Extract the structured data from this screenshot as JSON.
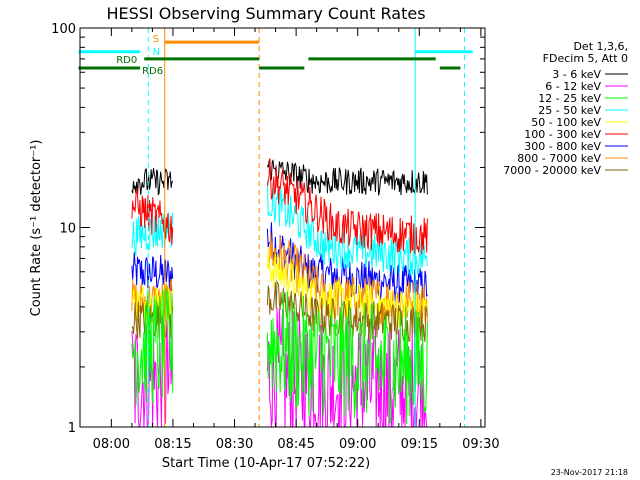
{
  "chart_data": {
    "type": "line",
    "title": "HESSI Observing Summary Count Rates",
    "xlabel": "Start Time (10-Apr-17 07:52:22)",
    "ylabel": "Count Rate (s⁻¹ detector⁻¹)",
    "yscale": "log",
    "ylim": [
      1,
      100
    ],
    "xlim": [
      "07:52:22",
      "09:31:00"
    ],
    "x_ticks": [
      "08:00",
      "08:15",
      "08:30",
      "08:45",
      "09:00",
      "09:15",
      "09:30"
    ],
    "y_ticks": [
      "1",
      "10",
      "100"
    ],
    "legend": {
      "placement": "right",
      "header": [
        "Det 1,3,6,",
        "FDecim 5, Att 0"
      ],
      "entries": [
        {
          "label": "3 - 6 keV",
          "color": "#000000"
        },
        {
          "label": "6 - 12 keV",
          "color": "#ff00ff"
        },
        {
          "label": "12 - 25 keV",
          "color": "#00ff00"
        },
        {
          "label": "25 - 50 keV",
          "color": "#00ffff"
        },
        {
          "label": "50 - 100 keV",
          "color": "#ffff00"
        },
        {
          "label": "100 - 300 keV",
          "color": "#ff0000"
        },
        {
          "label": "300 - 800 keV",
          "color": "#0000ff"
        },
        {
          "label": "800 - 7000 keV",
          "color": "#ff8c00"
        },
        {
          "label": "7000 - 20000 keV",
          "color": "#8b6508"
        }
      ]
    },
    "flags": [
      {
        "label": "S",
        "color": "#ff8c00",
        "value": 85,
        "intervals": [
          [
            "08:13",
            "08:36"
          ]
        ]
      },
      {
        "label": "N",
        "color": "#00ffff",
        "value": 76,
        "intervals": [
          [
            "07:52",
            "08:07"
          ],
          [
            "09:14",
            "09:28"
          ]
        ]
      },
      {
        "label": "RD0",
        "color": "#007000",
        "value": 70,
        "intervals": [
          [
            "08:08",
            "08:36"
          ],
          [
            "08:48",
            "09:19"
          ]
        ]
      },
      {
        "label": "RD6",
        "color": "#007000",
        "value": 63,
        "intervals": [
          [
            "07:52",
            "08:07"
          ],
          [
            "08:36",
            "08:47"
          ],
          [
            "09:20",
            "09:25"
          ]
        ]
      }
    ],
    "vlines": [
      {
        "time": "07:52:22",
        "color": "#00ffff",
        "style": "solid"
      },
      {
        "time": "08:09",
        "color": "#00ffff",
        "style": "dashed"
      },
      {
        "time": "08:13",
        "color": "#ff8c00",
        "style": "solid"
      },
      {
        "time": "08:36",
        "color": "#ff8c00",
        "style": "dashed"
      },
      {
        "time": "09:14",
        "color": "#00ffff",
        "style": "solid"
      },
      {
        "time": "09:26",
        "color": "#00ffff",
        "style": "dashed"
      }
    ],
    "data_segments": [
      [
        "08:05",
        "08:15"
      ],
      [
        "08:38",
        "09:17"
      ]
    ],
    "series": [
      {
        "name": "3 - 6 keV",
        "color": "#000000",
        "segments": [
          {
            "t": [
              "08:05",
              "08:15"
            ],
            "values": [
              17,
              17
            ]
          },
          {
            "t": [
              "08:38",
              "08:50",
              "09:17"
            ],
            "values": [
              20,
              17,
              17
            ]
          }
        ],
        "noise": 0.07
      },
      {
        "name": "6 - 12 keV",
        "color": "#ff00ff",
        "segments": [
          {
            "t": [
              "08:05",
              "08:15"
            ],
            "values": [
              1.7,
              1.7
            ]
          },
          {
            "t": [
              "08:38",
              "08:45",
              "09:17"
            ],
            "values": [
              1.9,
              1.7,
              1.5
            ]
          }
        ],
        "noise": 0.35
      },
      {
        "name": "12 - 25 keV",
        "color": "#00ff00",
        "segments": [
          {
            "t": [
              "08:05",
              "08:15"
            ],
            "values": [
              2.5,
              2.5
            ]
          },
          {
            "t": [
              "08:38",
              "08:45",
              "09:17"
            ],
            "values": [
              2.8,
              2.3,
              2.0
            ]
          }
        ],
        "noise": 0.3
      },
      {
        "name": "25 - 50 keV",
        "color": "#00ffff",
        "segments": [
          {
            "t": [
              "08:05",
              "08:15"
            ],
            "values": [
              9,
              10
            ]
          },
          {
            "t": [
              "08:38",
              "08:45",
              "08:52",
              "09:17"
            ],
            "values": [
              14,
              11,
              8,
              7
            ]
          }
        ],
        "noise": 0.1
      },
      {
        "name": "50 - 100 keV",
        "color": "#ffff00",
        "segments": [
          {
            "t": [
              "08:05",
              "08:15"
            ],
            "values": [
              4.2,
              4.2
            ]
          },
          {
            "t": [
              "08:38",
              "08:50",
              "09:17"
            ],
            "values": [
              6.5,
              4.5,
              3.8
            ]
          }
        ],
        "noise": 0.1
      },
      {
        "name": "100 - 300 keV",
        "color": "#ff0000",
        "segments": [
          {
            "t": [
              "08:05",
              "08:15"
            ],
            "values": [
              13,
              10
            ]
          },
          {
            "t": [
              "08:38",
              "08:48",
              "08:55",
              "09:17"
            ],
            "values": [
              18,
              13,
              10,
              9
            ]
          }
        ],
        "noise": 0.1
      },
      {
        "name": "300 - 800 keV",
        "color": "#0000ff",
        "segments": [
          {
            "t": [
              "08:05",
              "08:15"
            ],
            "values": [
              6,
              5.8
            ]
          },
          {
            "t": [
              "08:38",
              "08:48",
              "09:17"
            ],
            "values": [
              9,
              6,
              5
            ]
          }
        ],
        "noise": 0.1
      },
      {
        "name": "800 - 7000 keV",
        "color": "#ff8c00",
        "segments": [
          {
            "t": [
              "08:05",
              "08:15"
            ],
            "values": [
              4.2,
              4.2
            ]
          },
          {
            "t": [
              "08:38",
              "08:46",
              "08:52",
              "09:17"
            ],
            "values": [
              7.8,
              6,
              4.5,
              4.2
            ]
          }
        ],
        "noise": 0.12
      },
      {
        "name": "7000 - 20000 keV",
        "color": "#8b6508",
        "segments": [
          {
            "t": [
              "08:05",
              "08:15"
            ],
            "values": [
              3.5,
              3.4
            ]
          },
          {
            "t": [
              "08:38",
              "08:50",
              "09:17"
            ],
            "values": [
              4.5,
              3.6,
              3.3
            ]
          }
        ],
        "noise": 0.1
      }
    ]
  },
  "footer": {
    "timestamp": "23-Nov-2017 21:18"
  }
}
